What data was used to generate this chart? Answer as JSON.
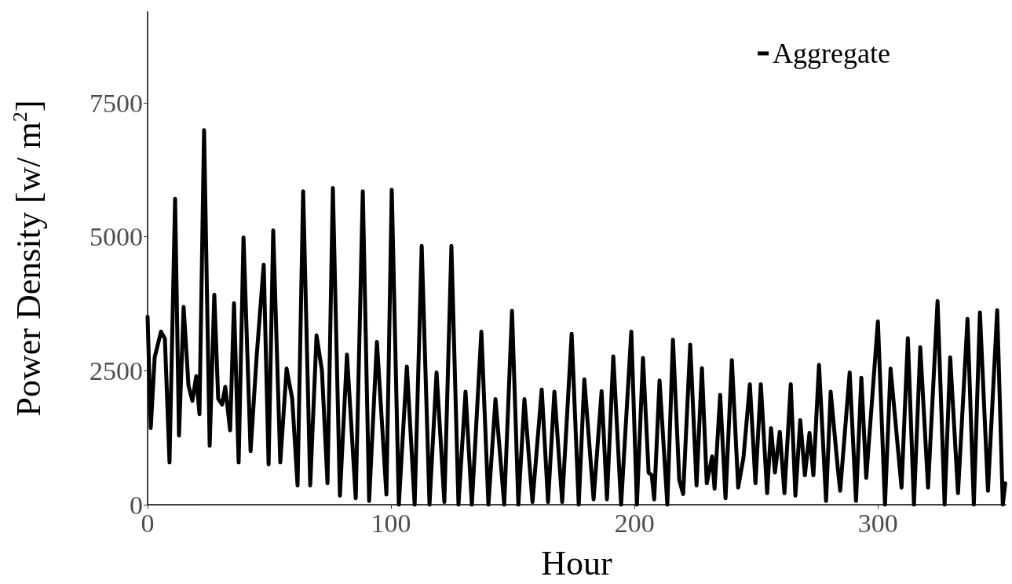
{
  "chart_data": {
    "type": "line",
    "xlabel": "Hour",
    "ylabel": "Power Density [w/ m$^{2}$]",
    "xlim": [
      0,
      352.5
    ],
    "xticks": [
      0,
      100,
      200,
      300
    ],
    "ylim": [
      0,
      9200
    ],
    "yticks": [
      0,
      2500,
      5000,
      7500
    ],
    "grid": false,
    "legend": "top right",
    "marker": "none",
    "line_style": "solid",
    "series": [
      {
        "name": "Aggregate",
        "color": "#000000",
        "x": [
          0,
          1.3,
          2.9,
          5.5,
          7.1,
          9.0,
          11.3,
          12.9,
          14.8,
          16.8,
          18.4,
          20.0,
          21.3,
          23.2,
          25.5,
          27.4,
          29.0,
          30.6,
          31.9,
          33.9,
          35.5,
          37.4,
          39.4,
          42.3,
          44.8,
          47.7,
          49.7,
          51.6,
          54.5,
          57.1,
          59.4,
          61.6,
          63.9,
          66.8,
          69.4,
          71.6,
          73.9,
          76.1,
          79.0,
          81.9,
          85.5,
          88.4,
          91.0,
          94.2,
          98.1,
          100.3,
          103.2,
          106.5,
          109.7,
          112.6,
          115.8,
          118.7,
          121.9,
          124.8,
          127.7,
          130.6,
          133.2,
          137.1,
          140.0,
          142.9,
          146.5,
          149.7,
          152.3,
          154.8,
          158.1,
          161.9,
          164.5,
          167.1,
          170.3,
          174.2,
          177.1,
          179.4,
          183.2,
          186.5,
          188.7,
          191.3,
          194.5,
          198.7,
          201.0,
          203.5,
          205.8,
          207.1,
          208.1,
          210.3,
          213.5,
          215.8,
          218.4,
          220.0,
          222.9,
          225.5,
          227.7,
          229.7,
          231.9,
          232.9,
          235.2,
          237.4,
          240.0,
          242.6,
          244.8,
          247.4,
          249.7,
          251.9,
          254.5,
          256.1,
          257.7,
          259.7,
          261.6,
          264.2,
          266.1,
          268.1,
          270.0,
          271.9,
          273.5,
          275.8,
          278.7,
          280.6,
          283.5,
          284.5,
          288.4,
          291.0,
          293.2,
          295.2,
          300.0,
          302.9,
          305.2,
          309.7,
          312.3,
          314.8,
          317.4,
          320.6,
          324.5,
          327.4,
          329.7,
          332.9,
          336.8,
          339.4,
          341.9,
          345.2,
          349.0,
          351.3,
          352.3
        ],
        "values": [
          3510,
          1430,
          2750,
          3230,
          3100,
          790,
          5710,
          1290,
          3690,
          2220,
          1940,
          2400,
          1690,
          6990,
          1100,
          3920,
          1980,
          1870,
          2200,
          1390,
          3760,
          790,
          4990,
          1000,
          2770,
          4480,
          750,
          5120,
          790,
          2540,
          1980,
          360,
          5850,
          360,
          3160,
          2510,
          400,
          5910,
          170,
          2800,
          120,
          5850,
          70,
          3040,
          190,
          5880,
          0,
          2580,
          0,
          4830,
          0,
          2470,
          50,
          4830,
          0,
          2110,
          0,
          3230,
          0,
          1970,
          0,
          3620,
          0,
          1970,
          50,
          2150,
          50,
          2110,
          50,
          3190,
          0,
          2340,
          100,
          2120,
          100,
          2770,
          0,
          3230,
          0,
          2740,
          600,
          550,
          100,
          2320,
          0,
          3080,
          460,
          200,
          2990,
          360,
          2550,
          400,
          900,
          300,
          2050,
          120,
          2700,
          320,
          890,
          2250,
          400,
          2250,
          215,
          1430,
          600,
          1360,
          215,
          2250,
          170,
          1580,
          550,
          1340,
          550,
          2610,
          70,
          2110,
          690,
          260,
          2470,
          70,
          2370,
          500,
          3420,
          0,
          2540,
          320,
          3110,
          0,
          2940,
          320,
          3800,
          0,
          2750,
          215,
          3470,
          0,
          3590,
          260,
          3630,
          0,
          400
        ]
      }
    ]
  }
}
